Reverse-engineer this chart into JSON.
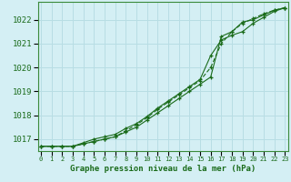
{
  "xlabel": "Graphe pression niveau de la mer (hPa)",
  "x": [
    0,
    1,
    2,
    3,
    4,
    5,
    6,
    7,
    8,
    9,
    10,
    11,
    12,
    13,
    14,
    15,
    16,
    17,
    18,
    19,
    20,
    21,
    22,
    23
  ],
  "line1": [
    1016.7,
    1016.7,
    1016.7,
    1016.7,
    1016.8,
    1016.9,
    1017.0,
    1017.1,
    1017.3,
    1017.5,
    1017.8,
    1018.1,
    1018.4,
    1018.7,
    1019.0,
    1019.3,
    1019.6,
    1021.3,
    1021.5,
    1021.9,
    1022.0,
    1022.2,
    1022.4,
    1022.5
  ],
  "line2": [
    1016.7,
    1016.7,
    1016.7,
    1016.7,
    1016.8,
    1016.9,
    1017.0,
    1017.1,
    1017.35,
    1017.6,
    1017.9,
    1018.25,
    1018.55,
    1018.85,
    1019.15,
    1019.45,
    1020.0,
    1021.0,
    1021.5,
    1021.85,
    1022.05,
    1022.25,
    1022.4,
    1022.5
  ],
  "line3": [
    1016.7,
    1016.7,
    1016.7,
    1016.7,
    1016.85,
    1017.0,
    1017.1,
    1017.2,
    1017.45,
    1017.65,
    1017.95,
    1018.3,
    1018.6,
    1018.9,
    1019.2,
    1019.5,
    1020.5,
    1021.15,
    1021.35,
    1021.5,
    1021.85,
    1022.1,
    1022.35,
    1022.5
  ],
  "line_color": "#1a6b1a",
  "bg_color": "#d4eff4",
  "grid_color": "#b8dde4",
  "axis_color": "#1a6b1a",
  "spine_color": "#3a8a3a",
  "ylim_min": 1016.5,
  "ylim_max": 1022.75,
  "yticks": [
    1017,
    1018,
    1019,
    1020,
    1021,
    1022
  ],
  "xticks": [
    0,
    1,
    2,
    3,
    4,
    5,
    6,
    7,
    8,
    9,
    10,
    11,
    12,
    13,
    14,
    15,
    16,
    17,
    18,
    19,
    20,
    21,
    22,
    23
  ]
}
